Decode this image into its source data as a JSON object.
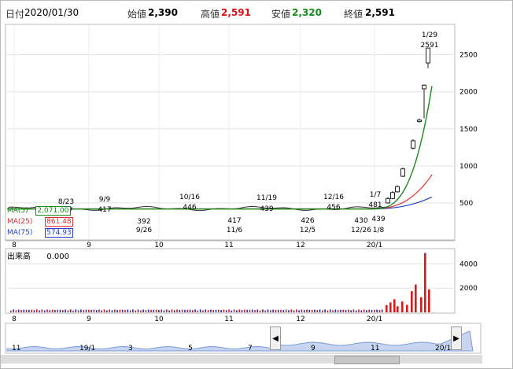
{
  "header": {
    "date_label": "日付",
    "date_value": "2020/01/30",
    "open_label": "始値",
    "open_value": "2,390",
    "high_label": "高値",
    "high_value": "2,591",
    "low_label": "安値",
    "low_value": "2,320",
    "close_label": "終値",
    "close_value": "2,591"
  },
  "legend": {
    "ma5_label": "MA(5)",
    "ma5_value": "2,071.00",
    "ma25_label": "MA(25)",
    "ma25_value": "861.48",
    "ma75_label": "MA(75)",
    "ma75_value": "574.93"
  },
  "volume": {
    "label": "出来高",
    "value": "0.000"
  },
  "colors": {
    "up": "#e01010",
    "down": "#168a16",
    "ma5": "#1a8a1a",
    "ma25": "#e03030",
    "ma75": "#2040d0",
    "volume_up": "#d41c1c",
    "volume_down": "#1c2fb0",
    "navigator_fill": "#c7d5f0"
  },
  "chart_data": [
    {
      "type": "line",
      "title": "",
      "y_ticks": [
        "2500",
        "2000",
        "1500",
        "1000",
        "500"
      ],
      "ylim": [
        0,
        2900
      ],
      "x_ticks": [
        "8",
        "9",
        "10",
        "11",
        "12",
        "20/1"
      ],
      "annotations": [
        {
          "date": "8/23",
          "value": "417"
        },
        {
          "date": "9/9",
          "value": "417"
        },
        {
          "date": "9/26",
          "value": "392"
        },
        {
          "date": "10/16",
          "value": "446"
        },
        {
          "date": "11/6",
          "value": "417"
        },
        {
          "date": "11/19",
          "value": "439"
        },
        {
          "date": "12/5",
          "value": "426"
        },
        {
          "date": "12/16",
          "value": "456"
        },
        {
          "date": "12/26",
          "value": "430"
        },
        {
          "date": "1/7",
          "value": "481"
        },
        {
          "date": "1/8",
          "value": "439"
        },
        {
          "date": "1/29",
          "value": "2591"
        }
      ],
      "candles": [
        {
          "date": "1/16",
          "open": 500,
          "close": 560,
          "high": 580,
          "low": 490
        },
        {
          "date": "1/17",
          "open": 560,
          "close": 640,
          "high": 660,
          "low": 550
        },
        {
          "date": "1/20",
          "open": 650,
          "close": 720,
          "high": 740,
          "low": 640
        },
        {
          "date": "1/21",
          "open": 860,
          "close": 960,
          "high": 980,
          "low": 850
        },
        {
          "date": "1/22",
          "open": 1240,
          "close": 1340,
          "high": 1360,
          "low": 1220
        },
        {
          "date": "1/23",
          "open": 1600,
          "close": 1620,
          "high": 1640,
          "low": 1580
        },
        {
          "date": "1/24",
          "open": 2040,
          "close": 2090,
          "high": 2100,
          "low": 1640
        },
        {
          "date": "1/29",
          "open": 2390,
          "close": 2591,
          "high": 2591,
          "low": 2320
        }
      ]
    },
    {
      "type": "bar",
      "title": "",
      "y_ticks": [
        "4000",
        "2000"
      ],
      "ylim": [
        0,
        5200
      ],
      "x_ticks": [
        "8",
        "9",
        "10",
        "11",
        "12",
        "20/1"
      ]
    }
  ],
  "navigator": {
    "labels": [
      "11",
      "19/1",
      "3",
      "5",
      "7",
      "9",
      "11",
      "20/1"
    ],
    "left_arrow": "◀",
    "right_arrow": "▶"
  }
}
